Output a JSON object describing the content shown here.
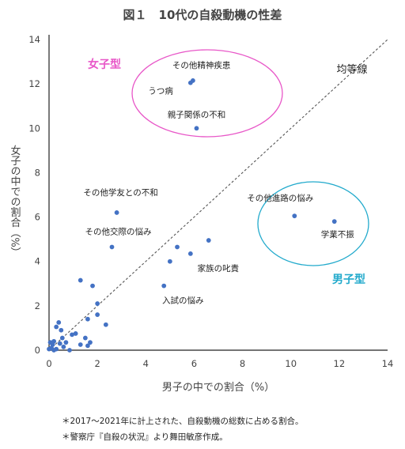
{
  "title": "図１　10代の自殺動機の性差",
  "notes": [
    "＊2017～2021年に計上された、自殺動機の総数に占める割合。",
    "＊警察庁『自殺の状況』より舞田敏彦作成。"
  ],
  "chart_data": {
    "type": "scatter",
    "title": "図１　10代の自殺動機の性差",
    "xlabel": "男子の中での割合（%）",
    "ylabel": "女子の中での割合（%）",
    "xlim": [
      0,
      14
    ],
    "ylim": [
      0,
      14
    ],
    "xticks": [
      "0",
      "2",
      "4",
      "6",
      "8",
      "10",
      "12",
      "14"
    ],
    "yticks": [
      "0",
      "2",
      "4",
      "6",
      "8",
      "10",
      "12",
      "14"
    ],
    "grid": false,
    "reference_line": {
      "label": "均等線",
      "from": [
        0,
        0
      ],
      "to": [
        14,
        14
      ]
    },
    "groups": [
      {
        "label": "女子型",
        "color": "#e857c8"
      },
      {
        "label": "男子型",
        "color": "#22aacc"
      }
    ],
    "point_color": "#4472c4",
    "labeled_points": [
      {
        "label": "その他精神疾患",
        "x": 5.95,
        "y": 12.15
      },
      {
        "label": "うつ病",
        "x": 5.85,
        "y": 12.05
      },
      {
        "label": "親子関係の不和",
        "x": 6.1,
        "y": 10.0
      },
      {
        "label": "その他学友との不和",
        "x": 2.8,
        "y": 6.2
      },
      {
        "label": "その他交際の悩み",
        "x": 2.6,
        "y": 4.65
      },
      {
        "label": "その他進路の悩み",
        "x": 10.15,
        "y": 6.05
      },
      {
        "label": "学業不振",
        "x": 11.8,
        "y": 5.8
      },
      {
        "label": "家族の叱責",
        "x": 5.85,
        "y": 4.35
      },
      {
        "label": "入試の悩み",
        "x": 4.75,
        "y": 2.9
      }
    ],
    "unlabeled_points": [
      {
        "x": 6.6,
        "y": 4.95
      },
      {
        "x": 5.3,
        "y": 4.65
      },
      {
        "x": 5.0,
        "y": 4.0
      },
      {
        "x": 1.3,
        "y": 3.15
      },
      {
        "x": 1.8,
        "y": 2.9
      },
      {
        "x": 2.0,
        "y": 2.1
      },
      {
        "x": 2.0,
        "y": 1.6
      },
      {
        "x": 2.35,
        "y": 1.15
      },
      {
        "x": 1.6,
        "y": 1.4
      },
      {
        "x": 1.7,
        "y": 0.35
      },
      {
        "x": 1.5,
        "y": 0.55
      },
      {
        "x": 1.6,
        "y": 0.2
      },
      {
        "x": 1.3,
        "y": 0.25
      },
      {
        "x": 1.1,
        "y": 0.75
      },
      {
        "x": 0.95,
        "y": 0.7
      },
      {
        "x": 0.4,
        "y": 1.25
      },
      {
        "x": 0.3,
        "y": 1.05
      },
      {
        "x": 0.5,
        "y": 0.9
      },
      {
        "x": 0.55,
        "y": 0.55
      },
      {
        "x": 0.7,
        "y": 0.35
      },
      {
        "x": 0.6,
        "y": 0.15
      },
      {
        "x": 0.2,
        "y": 0.4
      },
      {
        "x": 0.15,
        "y": 0.25
      },
      {
        "x": 0.1,
        "y": 0.1
      },
      {
        "x": 0.05,
        "y": 0.35
      },
      {
        "x": 0.0,
        "y": 0.05
      },
      {
        "x": 0.3,
        "y": 0.05
      },
      {
        "x": 0.45,
        "y": 0.3
      },
      {
        "x": 0.85,
        "y": 0.0
      },
      {
        "x": 0.2,
        "y": 0.0
      }
    ]
  }
}
